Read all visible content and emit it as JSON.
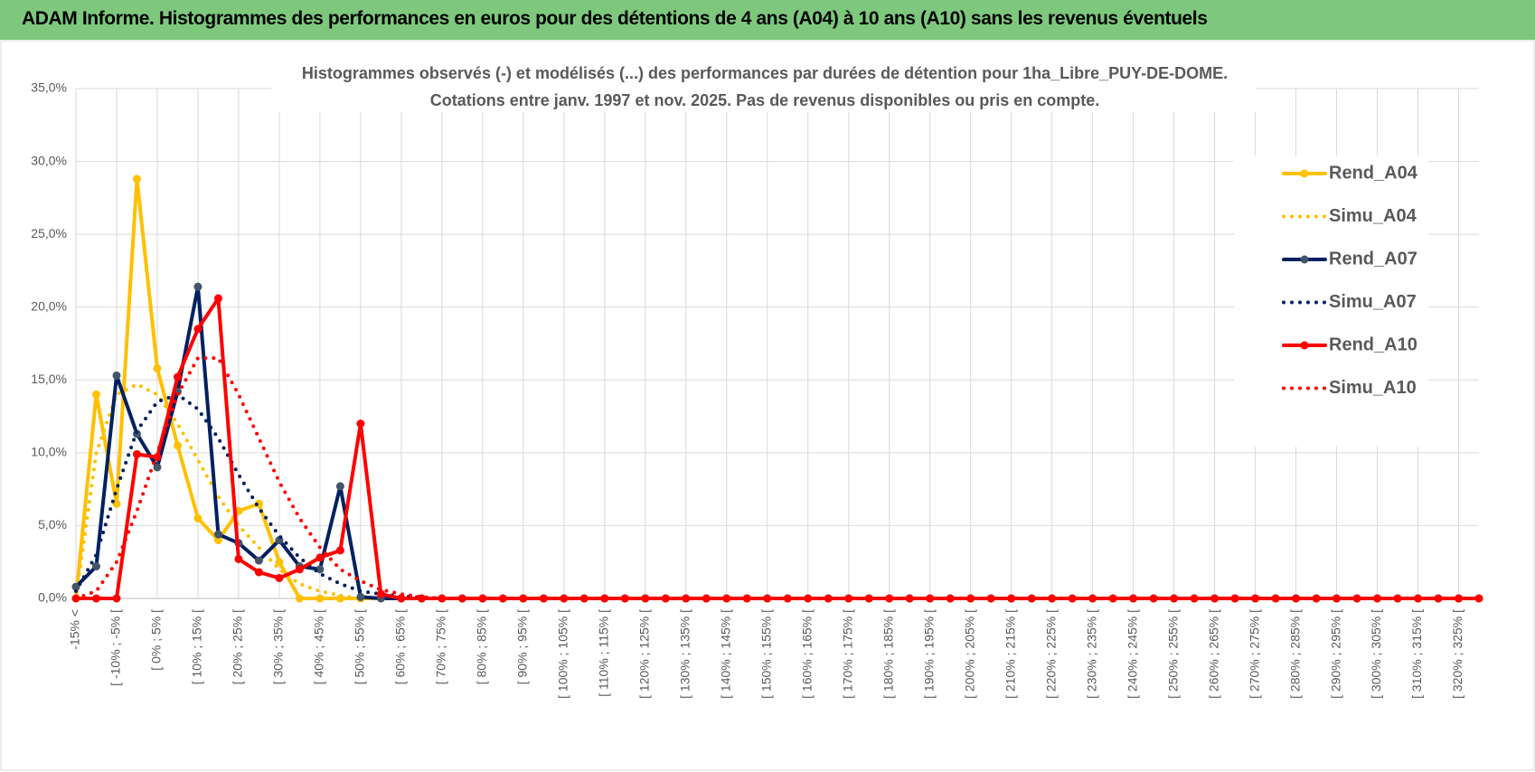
{
  "header": {
    "title": "ADAM Informe. Histogrammes des performances en euros pour des détentions de 4 ans (A04) à 10 ans (A10) sans les revenus éventuels"
  },
  "chart_data": {
    "type": "line",
    "title": [
      "Histogrammes observés (-) et modélisés (...) des performances par durées de détention pour 1ha_Libre_PUY-DE-DOME.",
      "Cotations entre janv. 1997 et nov. 2025. Pas de revenus disponibles ou pris en compte."
    ],
    "categories": [
      "-15% <",
      null,
      "[ -10% ; -5% [",
      null,
      "[ 0% ; 5% [",
      null,
      "[ 10% ; 15% [",
      null,
      "[ 20% ; 25% [",
      null,
      "[ 30% ; 35% [",
      null,
      "[ 40% ; 45% [",
      null,
      "[ 50% ; 55% [",
      null,
      "[ 60% ; 65% [",
      null,
      "[ 70% ; 75% [",
      null,
      "[ 80% ; 85% [",
      null,
      "[ 90% ; 95% [",
      null,
      "[ 100% ; 105% [",
      null,
      "[ 110% ; 115% [",
      null,
      "[ 120% ; 125% [",
      null,
      "[ 130% ; 135% [",
      null,
      "[ 140% ; 145% [",
      null,
      "[ 150% ; 155% [",
      null,
      "[ 160% ; 165% [",
      null,
      "[ 170% ; 175% [",
      null,
      "[ 180% ; 185% [",
      null,
      "[ 190% ; 195% [",
      null,
      "[ 200% ; 205% [",
      null,
      "[ 210% ; 215% [",
      null,
      "[ 220% ; 225% [",
      null,
      "[ 230% ; 235% [",
      null,
      "[ 240% ; 245% [",
      null,
      "[ 250% ; 255% [",
      null,
      "[ 260% ; 265% [",
      null,
      "[ 270% ; 275% [",
      null,
      "[ 280% ; 285% [",
      null,
      "[ 290% ; 295% [",
      null,
      "[ 300% ; 305% [",
      null,
      "[ 310% ; 315% [",
      null,
      "[ 320% ; 325% [",
      null
    ],
    "series": [
      {
        "name": "Rend_A04",
        "color": "#FFC000",
        "style": "solid",
        "values": [
          0,
          14.0,
          6.5,
          28.8,
          15.8,
          10.5,
          5.5,
          4.0,
          6.0,
          6.5,
          2.5,
          0,
          0,
          0,
          0,
          0,
          0,
          0,
          0,
          0,
          0,
          0,
          0,
          0,
          0,
          0,
          0,
          0,
          0,
          0,
          0,
          0,
          0,
          0,
          0,
          0,
          0,
          0,
          0,
          0,
          0,
          0,
          0,
          0,
          0,
          0,
          0,
          0,
          0,
          0,
          0,
          0,
          0,
          0,
          0,
          0,
          0,
          0,
          0,
          0,
          0,
          0,
          0,
          0,
          0,
          0,
          0,
          0,
          0,
          0
        ]
      },
      {
        "name": "Simu_A04",
        "color": "#FFC000",
        "style": "dotted",
        "values": [
          0,
          10,
          14.0,
          14.7,
          14.0,
          12,
          9.5,
          7,
          5,
          3.5,
          2,
          1,
          0.5,
          0.2,
          0,
          0,
          0,
          0,
          0,
          0,
          0,
          0,
          0,
          0,
          0,
          0,
          0,
          0,
          0,
          0,
          0,
          0,
          0,
          0,
          0,
          0,
          0,
          0,
          0,
          0,
          0,
          0,
          0,
          0,
          0,
          0,
          0,
          0,
          0,
          0,
          0,
          0,
          0,
          0,
          0,
          0,
          0,
          0,
          0,
          0,
          0,
          0,
          0,
          0,
          0,
          0,
          0,
          0,
          0,
          0
        ]
      },
      {
        "name": "Rend_A07",
        "color": "#002060",
        "marker_color": "#44546A",
        "style": "solid",
        "values": [
          0.8,
          2.2,
          15.3,
          11.3,
          9.0,
          14.2,
          21.4,
          4.4,
          3.8,
          2.6,
          4.0,
          2.2,
          2.0,
          7.7,
          0.1,
          0,
          0,
          0,
          0,
          0,
          0,
          0,
          0,
          0,
          0,
          0,
          0,
          0,
          0,
          0,
          0,
          0,
          0,
          0,
          0,
          0,
          0,
          0,
          0,
          0,
          0,
          0,
          0,
          0,
          0,
          0,
          0,
          0,
          0,
          0,
          0,
          0,
          0,
          0,
          0,
          0,
          0,
          0,
          0,
          0,
          0,
          0,
          0,
          0,
          0,
          0,
          0,
          0,
          0,
          0
        ]
      },
      {
        "name": "Simu_A07",
        "color": "#002060",
        "style": "dotted",
        "values": [
          0.5,
          3,
          7.5,
          11.5,
          13.5,
          14,
          13,
          11,
          8.5,
          6.2,
          4.3,
          2.8,
          1.7,
          1.0,
          0.5,
          0.3,
          0.15,
          0.05,
          0,
          0,
          0,
          0,
          0,
          0,
          0,
          0,
          0,
          0,
          0,
          0,
          0,
          0,
          0,
          0,
          0,
          0,
          0,
          0,
          0,
          0,
          0,
          0,
          0,
          0,
          0,
          0,
          0,
          0,
          0,
          0,
          0,
          0,
          0,
          0,
          0,
          0,
          0,
          0,
          0,
          0,
          0,
          0,
          0,
          0,
          0,
          0,
          0,
          0,
          0,
          0
        ]
      },
      {
        "name": "Rend_A10",
        "color": "#FF0000",
        "style": "solid",
        "values": [
          0,
          0,
          0,
          9.9,
          9.7,
          15.2,
          18.5,
          20.6,
          2.7,
          1.8,
          1.4,
          2.0,
          2.8,
          3.3,
          12.0,
          0.3,
          0,
          0,
          0,
          0,
          0,
          0,
          0,
          0,
          0,
          0,
          0,
          0,
          0,
          0,
          0,
          0,
          0,
          0,
          0,
          0,
          0,
          0,
          0,
          0,
          0,
          0,
          0,
          0,
          0,
          0,
          0,
          0,
          0,
          0,
          0,
          0,
          0,
          0,
          0,
          0,
          0,
          0,
          0,
          0,
          0,
          0,
          0,
          0,
          0,
          0,
          0,
          0,
          0,
          0
        ]
      },
      {
        "name": "Simu_A10",
        "color": "#FF0000",
        "style": "dotted",
        "values": [
          0,
          0.5,
          2.5,
          6,
          10,
          14,
          16.5,
          16.5,
          14,
          11,
          8,
          5.5,
          3.5,
          2,
          1.2,
          0.6,
          0.3,
          0.1,
          0,
          0,
          0,
          0,
          0,
          0,
          0,
          0,
          0,
          0,
          0,
          0,
          0,
          0,
          0,
          0,
          0,
          0,
          0,
          0,
          0,
          0,
          0,
          0,
          0,
          0,
          0,
          0,
          0,
          0,
          0,
          0,
          0,
          0,
          0,
          0,
          0,
          0,
          0,
          0,
          0,
          0,
          0,
          0,
          0,
          0,
          0,
          0,
          0,
          0,
          0,
          0
        ]
      }
    ],
    "ylim": [
      0,
      35
    ],
    "yticks": [
      {
        "value": 0,
        "label": "0,0%"
      },
      {
        "value": 5,
        "label": "5,0%"
      },
      {
        "value": 10,
        "label": "10,0%"
      },
      {
        "value": 15,
        "label": "15,0%"
      },
      {
        "value": 20,
        "label": "20,0%"
      },
      {
        "value": 25,
        "label": "25,0%"
      },
      {
        "value": 30,
        "label": "30,0%"
      },
      {
        "value": 35,
        "label": "35,0%"
      }
    ],
    "grid": true,
    "legend": "right"
  }
}
